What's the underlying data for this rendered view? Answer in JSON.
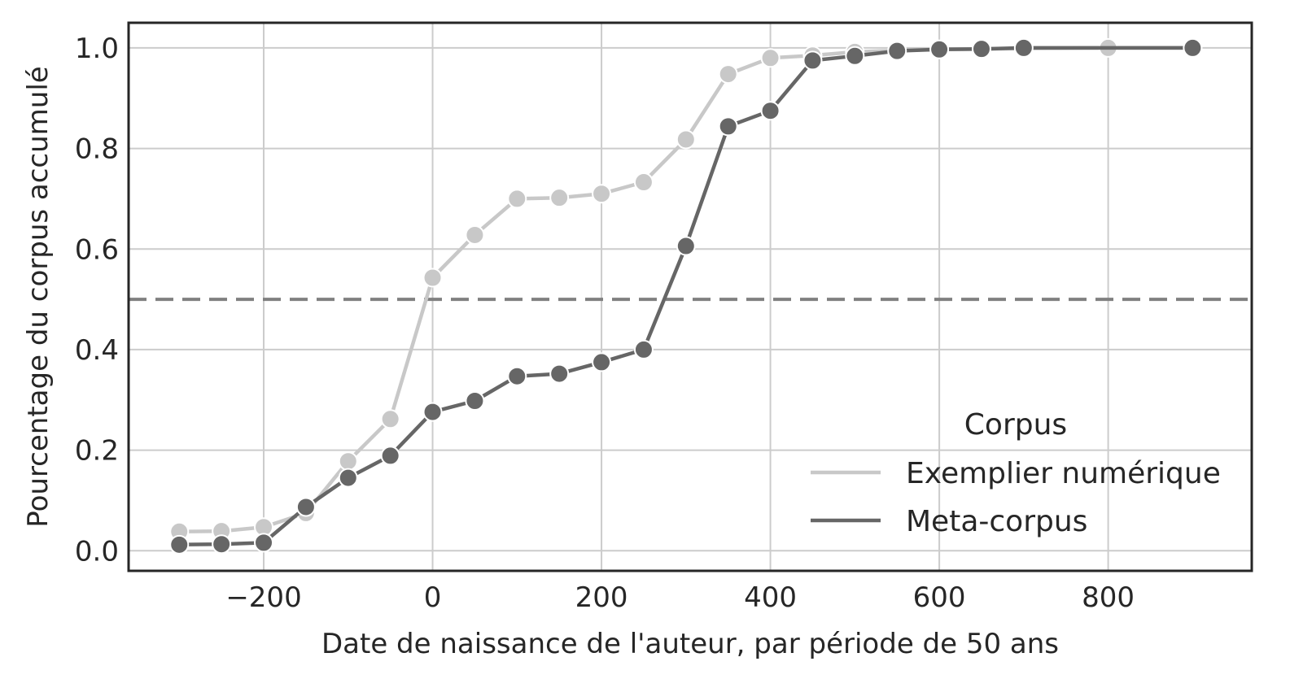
{
  "chart_data": {
    "type": "line",
    "xlabel": "Date de naissance de l'auteur, par période de 50 ans",
    "ylabel": "Pourcentage du corpus accumulé",
    "xlim": [
      -360,
      970
    ],
    "ylim": [
      -0.04,
      1.05
    ],
    "xticks": [
      -200,
      0,
      200,
      400,
      600,
      800
    ],
    "xtick_labels": [
      "−200",
      "0",
      "200",
      "400",
      "600",
      "800"
    ],
    "yticks": [
      0.0,
      0.2,
      0.4,
      0.6,
      0.8,
      1.0
    ],
    "ytick_labels": [
      "0.0",
      "0.2",
      "0.4",
      "0.6",
      "0.8",
      "1.0"
    ],
    "grid": true,
    "reference_line": {
      "y": 0.5,
      "style": "dashed",
      "color": "#808080"
    },
    "legend": {
      "title": "Corpus",
      "placement": "lower-right",
      "entries": [
        "Exemplier numérique",
        "Meta-corpus"
      ]
    },
    "series": [
      {
        "name": "Exemplier numérique",
        "color": "#c8c8c8",
        "x": [
          -300,
          -250,
          -200,
          -150,
          -100,
          -50,
          0,
          50,
          100,
          150,
          200,
          250,
          300,
          350,
          400,
          450,
          500,
          550,
          600,
          650,
          700,
          800,
          900
        ],
        "y": [
          0.038,
          0.039,
          0.047,
          0.075,
          0.178,
          0.262,
          0.543,
          0.628,
          0.7,
          0.702,
          0.71,
          0.733,
          0.818,
          0.948,
          0.98,
          0.985,
          0.992,
          0.995,
          0.997,
          0.998,
          0.999,
          1.0,
          1.0
        ]
      },
      {
        "name": "Meta-corpus",
        "color": "#666666",
        "x": [
          -300,
          -250,
          -200,
          -150,
          -100,
          -50,
          0,
          50,
          100,
          150,
          200,
          250,
          300,
          350,
          400,
          450,
          500,
          550,
          600,
          650,
          700,
          900
        ],
        "y": [
          0.012,
          0.013,
          0.016,
          0.087,
          0.145,
          0.189,
          0.276,
          0.298,
          0.347,
          0.352,
          0.375,
          0.4,
          0.606,
          0.844,
          0.875,
          0.975,
          0.984,
          0.994,
          0.997,
          0.998,
          1.0,
          1.0
        ]
      }
    ]
  }
}
